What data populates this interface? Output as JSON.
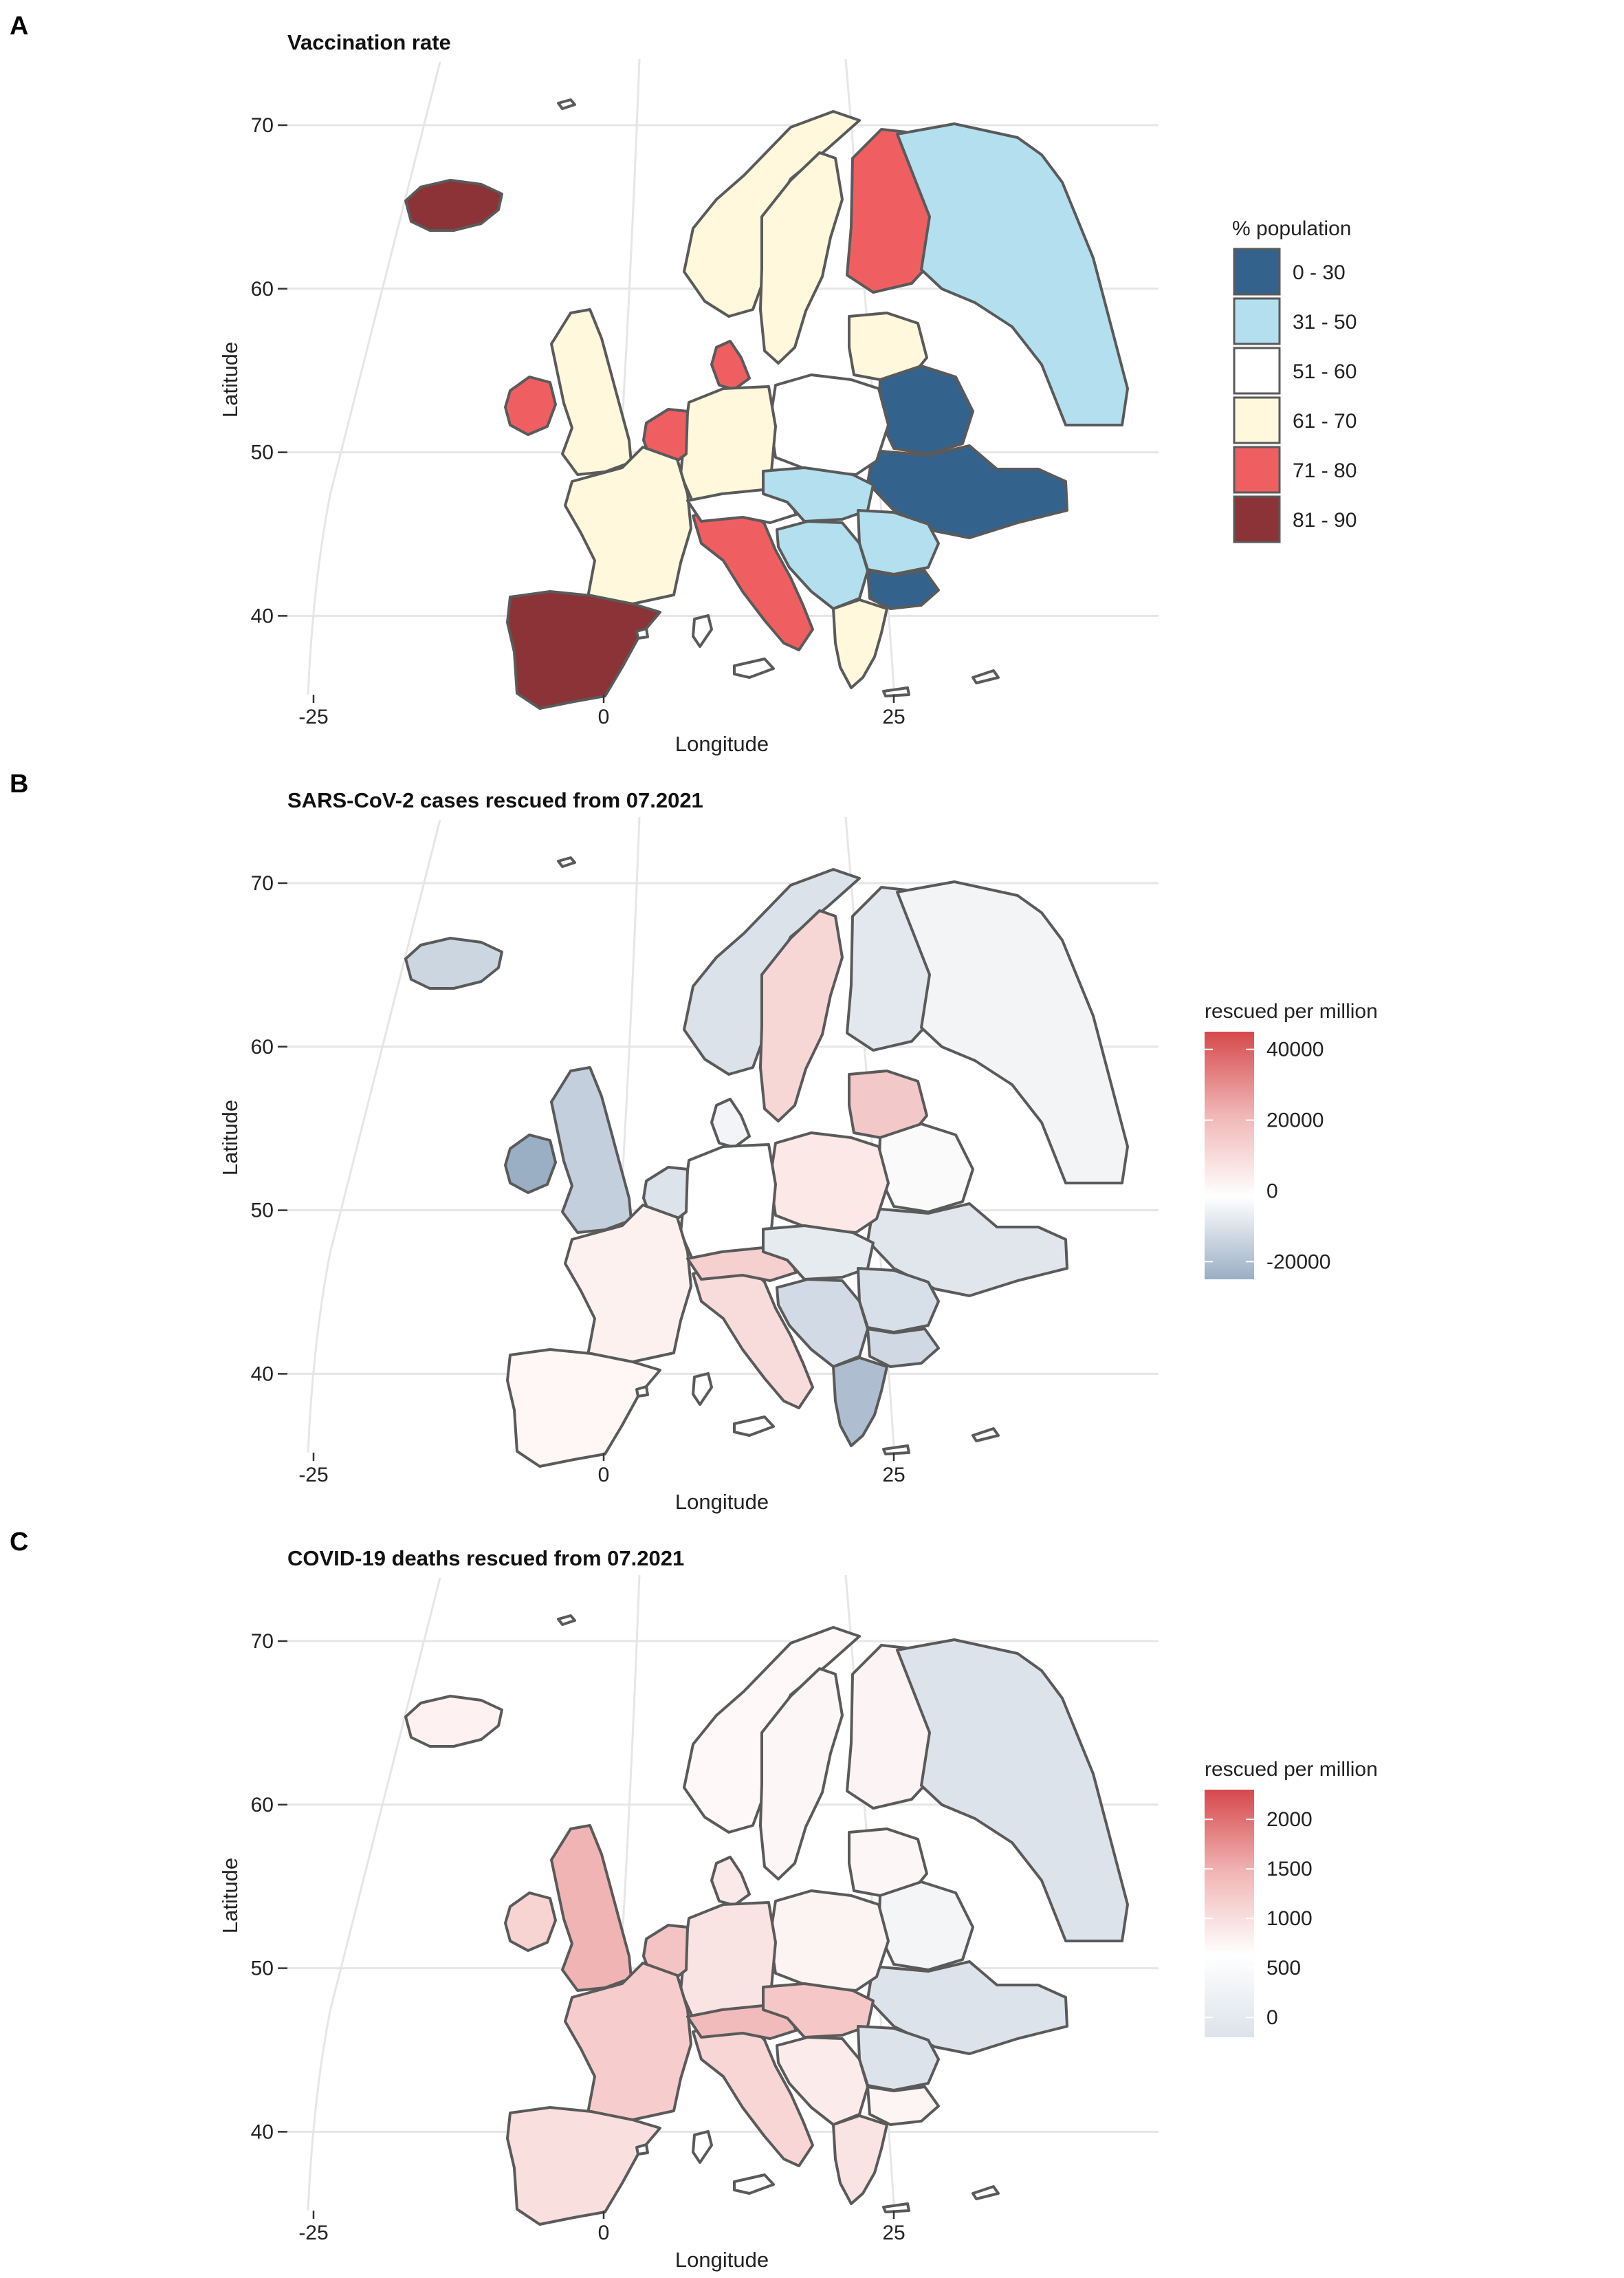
{
  "panels": [
    {
      "letter": "A",
      "title": "Vaccination rate",
      "xlabel": "Longitude",
      "ylabel": "Latitude",
      "xticks": [
        "-25",
        "0",
        "25"
      ],
      "yticks": [
        "70",
        "60",
        "50",
        "40"
      ],
      "legend": {
        "type": "categorical",
        "title": "% population",
        "items": [
          {
            "label": "0 - 30",
            "color": "#33638d"
          },
          {
            "label": "31 - 50",
            "color": "#b3dfee"
          },
          {
            "label": "51 - 60",
            "color": "#ffffff"
          },
          {
            "label": "61 - 70",
            "color": "#fff8dc"
          },
          {
            "label": "71 - 80",
            "color": "#ef5f61"
          },
          {
            "label": "81 - 90",
            "color": "#8b3336"
          }
        ]
      },
      "fills": {
        "iceland": "#8b3336",
        "ireland": "#ef5f61",
        "uk": "#fff8dc",
        "norway": "#fff8dc",
        "sweden": "#fff8dc",
        "finland": "#ef5f61",
        "denmark": "#ef5f61",
        "russia": "#b3dfee",
        "baltics": "#fff8dc",
        "belarus": "#33638d",
        "ukraine": "#33638d",
        "poland": "#ffffff",
        "germany": "#fff8dc",
        "benelux": "#ef5f61",
        "france": "#fff8dc",
        "iberia": "#8b3336",
        "italy": "#ef5f61",
        "alps": "#ffffff",
        "centraleu": "#b3dfee",
        "balkans": "#b3dfee",
        "romania": "#b3dfee",
        "bulgaria": "#33638d",
        "greece": "#fff8dc"
      }
    },
    {
      "letter": "B",
      "title": "SARS-CoV-2 cases rescued from 07.2021",
      "xlabel": "Longitude",
      "ylabel": "Latitude",
      "xticks": [
        "-25",
        "0",
        "25"
      ],
      "yticks": [
        "70",
        "60",
        "50",
        "40"
      ],
      "legend": {
        "type": "gradient",
        "title": "rescued per million",
        "min": -25000,
        "max": 45000,
        "labels": [
          "40000",
          "20000",
          "0",
          "-20000"
        ],
        "label_values": [
          40000,
          20000,
          0,
          -20000
        ],
        "stops": [
          "#d6494c",
          "#f1b5b5",
          "#ffffff",
          "#9aafc4"
        ]
      },
      "fills": {
        "iceland": "#ccd6e1",
        "ireland": "#9aafc4",
        "uk": "#c3cfdc",
        "norway": "#dbe2ea",
        "sweden": "#f7d7d6",
        "finland": "#e3e8ee",
        "denmark": "#f2f4f7",
        "russia": "#f3f4f6",
        "baltics": "#f3c8c8",
        "belarus": "#fafafa",
        "ukraine": "#e1e6ed",
        "poland": "#fbe8e7",
        "germany": "#ffffff",
        "benelux": "#dde3ea",
        "france": "#fdf1f0",
        "iberia": "#fef7f6",
        "italy": "#f7dcdb",
        "alps": "#f5d0cf",
        "centraleu": "#e6ebf0",
        "balkans": "#d2dbe5",
        "romania": "#d7dfe8",
        "bulgaria": "#d0d9e3",
        "greece": "#aebed0"
      }
    },
    {
      "letter": "C",
      "title": "COVID-19 deaths rescued from 07.2021",
      "xlabel": "Longitude",
      "ylabel": "Latitude",
      "xticks": [
        "-25",
        "0",
        "25"
      ],
      "yticks": [
        "70",
        "60",
        "50",
        "40"
      ],
      "legend": {
        "type": "gradient",
        "title": "rescued per million",
        "min": -200,
        "max": 2300,
        "labels": [
          "2000",
          "1500",
          "1000",
          "500",
          "0"
        ],
        "label_values": [
          2000,
          1500,
          1000,
          500,
          0
        ],
        "stops": [
          "#d6494c",
          "#f1b5b5",
          "#ffffff",
          "#dde3ea"
        ]
      },
      "fills": {
        "iceland": "#fdf1f1",
        "ireland": "#f7d3d2",
        "uk": "#f0b4b4",
        "norway": "#fef8f8",
        "sweden": "#fdf6f6",
        "finland": "#fcf4f4",
        "denmark": "#fbe9e9",
        "russia": "#dde3ea",
        "baltics": "#fdf6f6",
        "belarus": "#f3f5f7",
        "ukraine": "#dde3ea",
        "poland": "#fcf3f3",
        "germany": "#fae3e3",
        "benelux": "#f4c4c4",
        "france": "#f6cdcc",
        "iberia": "#f9dfde",
        "italy": "#f7d6d5",
        "alps": "#f2bbbb",
        "centraleu": "#f5c8c7",
        "balkans": "#fbebeb",
        "romania": "#dde3ea",
        "bulgaria": "#fdf4f4",
        "greece": "#fae4e3"
      }
    }
  ]
}
